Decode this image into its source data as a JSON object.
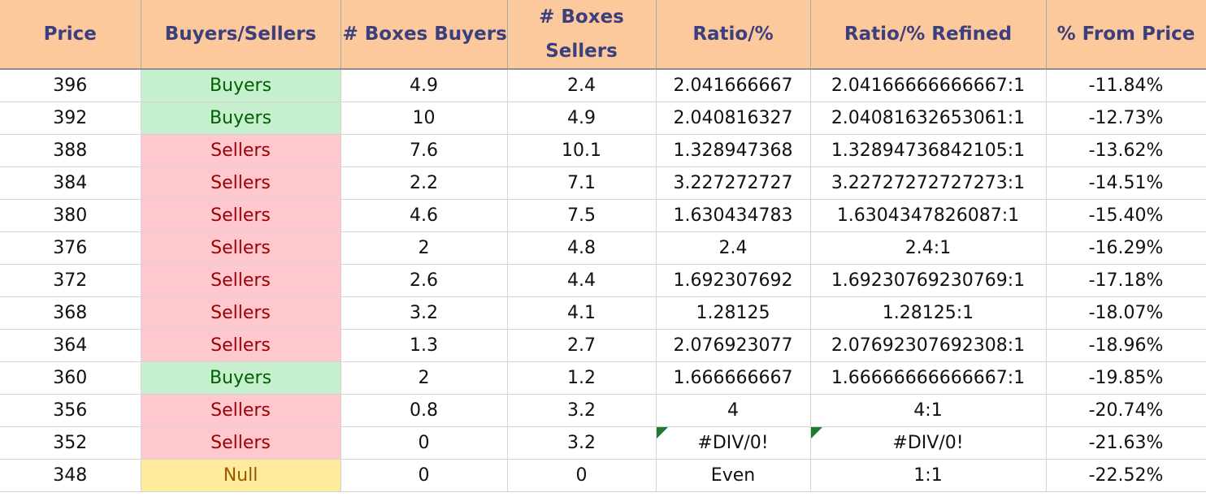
{
  "headers": [
    "Price",
    "Buyers/Sellers",
    "# Boxes Buyers",
    "# Boxes Sellers",
    "Ratio/%",
    "Ratio/% Refined",
    "% From Price"
  ],
  "header_lines": {
    "boxes_sellers_1": "# Boxes",
    "boxes_sellers_2": "Sellers"
  },
  "colors": {
    "header_bg": "#fcc99c",
    "header_text": "#3b3f7d",
    "buyers_bg": "#c6efce",
    "buyers_text": "#006100",
    "sellers_bg": "#ffc7ce",
    "sellers_text": "#9c0006",
    "null_bg": "#ffeb9c",
    "null_text": "#9c5700",
    "error_flag": "#1f7a2f"
  },
  "rows": [
    {
      "price": "396",
      "side": "Buyers",
      "boxes_buyers": "4.9",
      "boxes_sellers": "2.4",
      "ratio": "2.041666667",
      "ratio_refined": "2.04166666666667:1",
      "from_price": "-11.84%"
    },
    {
      "price": "392",
      "side": "Buyers",
      "boxes_buyers": "10",
      "boxes_sellers": "4.9",
      "ratio": "2.040816327",
      "ratio_refined": "2.04081632653061:1",
      "from_price": "-12.73%"
    },
    {
      "price": "388",
      "side": "Sellers",
      "boxes_buyers": "7.6",
      "boxes_sellers": "10.1",
      "ratio": "1.328947368",
      "ratio_refined": "1.32894736842105:1",
      "from_price": "-13.62%"
    },
    {
      "price": "384",
      "side": "Sellers",
      "boxes_buyers": "2.2",
      "boxes_sellers": "7.1",
      "ratio": "3.227272727",
      "ratio_refined": "3.22727272727273:1",
      "from_price": "-14.51%"
    },
    {
      "price": "380",
      "side": "Sellers",
      "boxes_buyers": "4.6",
      "boxes_sellers": "7.5",
      "ratio": "1.630434783",
      "ratio_refined": "1.6304347826087:1",
      "from_price": "-15.40%"
    },
    {
      "price": "376",
      "side": "Sellers",
      "boxes_buyers": "2",
      "boxes_sellers": "4.8",
      "ratio": "2.4",
      "ratio_refined": "2.4:1",
      "from_price": "-16.29%"
    },
    {
      "price": "372",
      "side": "Sellers",
      "boxes_buyers": "2.6",
      "boxes_sellers": "4.4",
      "ratio": "1.692307692",
      "ratio_refined": "1.69230769230769:1",
      "from_price": "-17.18%"
    },
    {
      "price": "368",
      "side": "Sellers",
      "boxes_buyers": "3.2",
      "boxes_sellers": "4.1",
      "ratio": "1.28125",
      "ratio_refined": "1.28125:1",
      "from_price": "-18.07%"
    },
    {
      "price": "364",
      "side": "Sellers",
      "boxes_buyers": "1.3",
      "boxes_sellers": "2.7",
      "ratio": "2.076923077",
      "ratio_refined": "2.07692307692308:1",
      "from_price": "-18.96%"
    },
    {
      "price": "360",
      "side": "Buyers",
      "boxes_buyers": "2",
      "boxes_sellers": "1.2",
      "ratio": "1.666666667",
      "ratio_refined": "1.66666666666667:1",
      "from_price": "-19.85%"
    },
    {
      "price": "356",
      "side": "Sellers",
      "boxes_buyers": "0.8",
      "boxes_sellers": "3.2",
      "ratio": "4",
      "ratio_refined": "4:1",
      "from_price": "-20.74%"
    },
    {
      "price": "352",
      "side": "Sellers",
      "boxes_buyers": "0",
      "boxes_sellers": "3.2",
      "ratio": "#DIV/0!",
      "ratio_refined": "#DIV/0!",
      "from_price": "-21.63%",
      "error": true
    },
    {
      "price": "348",
      "side": "Null",
      "boxes_buyers": "0",
      "boxes_sellers": "0",
      "ratio": "Even",
      "ratio_refined": "1:1",
      "from_price": "-22.52%"
    }
  ]
}
